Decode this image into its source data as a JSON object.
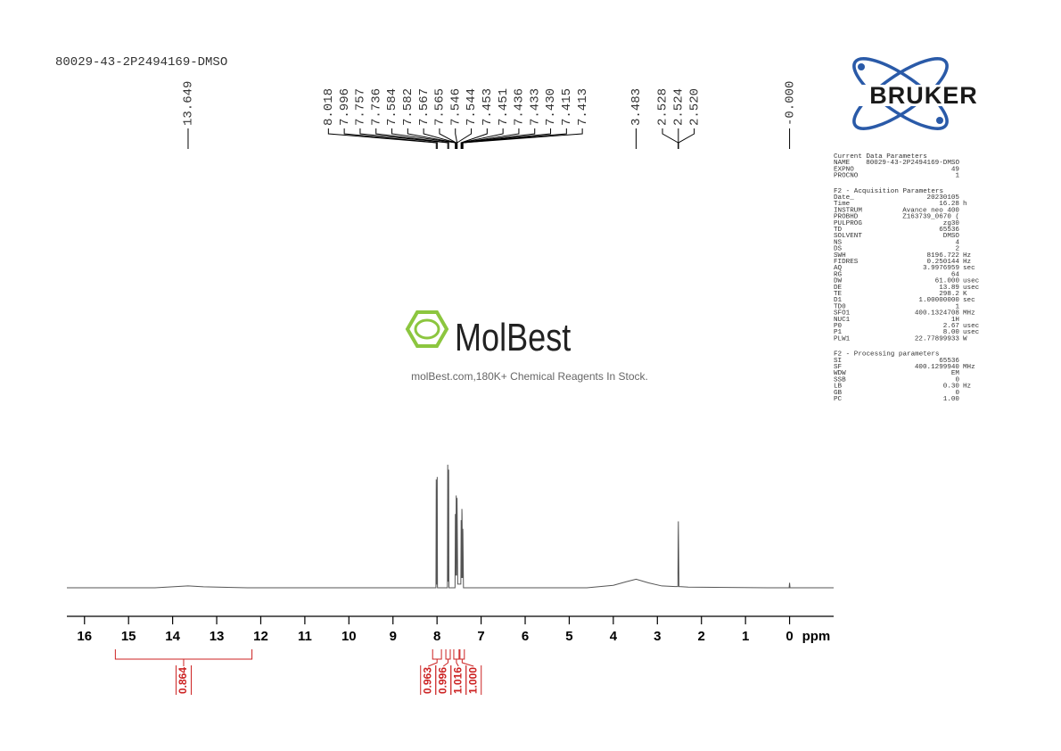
{
  "chart_data": {
    "type": "nmr",
    "title": "80029-43-2P2494169-DMSO",
    "x_label": "ppm",
    "xlim": [
      16.4,
      -1.0
    ],
    "xticks": [
      16,
      15,
      14,
      13,
      12,
      11,
      10,
      9,
      8,
      7,
      6,
      5,
      4,
      3,
      2,
      1,
      0
    ],
    "ylim": [
      0,
      100
    ],
    "color": "#555555",
    "integral_color": "#cc2222",
    "x": [
      16.4,
      14.4,
      14.0,
      13.65,
      13.3,
      12.3,
      8.1,
      8.025,
      8.018,
      8.01,
      8.003,
      7.996,
      7.99,
      7.765,
      7.757,
      7.747,
      7.736,
      7.73,
      7.592,
      7.584,
      7.574,
      7.565,
      7.556,
      7.546,
      7.544,
      7.53,
      7.46,
      7.453,
      7.451,
      7.443,
      7.436,
      7.433,
      7.43,
      7.423,
      7.415,
      7.413,
      7.4,
      4.6,
      4.0,
      3.7,
      3.483,
      3.2,
      2.9,
      2.6,
      2.535,
      2.528,
      2.524,
      2.52,
      2.51,
      2.3,
      0.5,
      0.01,
      0.0,
      -0.01,
      -1.0
    ],
    "values": [
      0,
      0,
      0.8,
      1.5,
      0.8,
      0,
      0,
      0,
      88,
      3,
      3,
      90,
      0,
      0,
      100,
      5,
      96,
      0,
      0,
      60,
      10,
      75,
      10,
      73,
      65,
      3,
      3,
      55,
      52,
      8,
      64,
      60,
      50,
      8,
      48,
      45,
      0,
      0,
      2,
      5,
      7,
      4,
      1.5,
      1,
      1,
      40,
      54,
      40,
      1,
      0.5,
      0,
      0,
      4,
      0,
      0
    ],
    "peaks": [
      13.649,
      8.018,
      7.996,
      7.757,
      7.736,
      7.584,
      7.582,
      7.567,
      7.565,
      7.546,
      7.544,
      7.453,
      7.451,
      7.436,
      7.433,
      {
        "value": 7.43,
        "label": "7.430"
      },
      7.415,
      7.413,
      3.483,
      2.528,
      2.524,
      {
        "value": 2.52,
        "label": "2.520"
      },
      {
        "value": 0,
        "label": "-0.000"
      }
    ],
    "integrals": {
      "ranges": [
        [
          15.3,
          12.2
        ],
        [
          8.1,
          7.9
        ],
        [
          7.8,
          7.7
        ],
        [
          7.62,
          7.5
        ],
        [
          7.48,
          7.38
        ]
      ],
      "values": [
        0.864,
        0.963,
        0.996,
        1.016,
        1
      ],
      "value_labels": [
        "0.864",
        "0.963",
        "0.996",
        "1.016",
        "1.000"
      ]
    }
  },
  "logo": {
    "brand": "BRUKER"
  },
  "watermark": {
    "name": "MolBest",
    "tagline": "molBest.com,180K+ Chemical Reagents In Stock."
  },
  "parameters": [
    {
      "title": "Current Data Parameters",
      "rows": [
        [
          "NAME",
          "80029-43-2P2494169-DMSO"
        ],
        [
          "EXPNO",
          "49"
        ],
        [
          "PROCNO",
          "1"
        ]
      ]
    },
    {
      "title": "F2 - Acquisition Parameters",
      "rows": [
        [
          "Date_",
          "20230105"
        ],
        [
          "Time",
          "16.28",
          "h"
        ],
        [
          "INSTRUM",
          "Avance neo 400"
        ],
        [
          "PROBHD",
          "Z163739_0670 ("
        ],
        [
          "PULPROG",
          "zg30"
        ],
        [
          "TD",
          "65536"
        ],
        [
          "SOLVENT",
          "DMSO"
        ],
        [
          "NS",
          "4"
        ],
        [
          "DS",
          "2"
        ],
        [
          "SWH",
          "8196.722",
          "Hz"
        ],
        [
          "FIDRES",
          "0.250144",
          "Hz"
        ],
        [
          "AQ",
          "3.9976959",
          "sec"
        ],
        [
          "RG",
          "64"
        ],
        [
          "DW",
          "61.000",
          "usec"
        ],
        [
          "DE",
          "13.89",
          "usec"
        ],
        [
          "TE",
          "298.2",
          "K"
        ],
        [
          "D1",
          "1.00000000",
          "sec"
        ],
        [
          "TD0",
          "1"
        ],
        [
          "SFO1",
          "400.1324708",
          "MHz"
        ],
        [
          "NUC1",
          "1H"
        ],
        [
          "P0",
          "2.67",
          "usec"
        ],
        [
          "P1",
          "8.00",
          "usec"
        ],
        [
          "PLW1",
          "22.77899933",
          "W"
        ]
      ]
    },
    {
      "title": "F2 - Processing parameters",
      "rows": [
        [
          "SI",
          "65536"
        ],
        [
          "SF",
          "400.1299940",
          "MHz"
        ],
        [
          "WDW",
          "EM"
        ],
        [
          "SSB",
          "0"
        ],
        [
          "LB",
          "0.30",
          "Hz"
        ],
        [
          "GB",
          "0"
        ],
        [
          "PC",
          "1.00"
        ]
      ]
    }
  ]
}
